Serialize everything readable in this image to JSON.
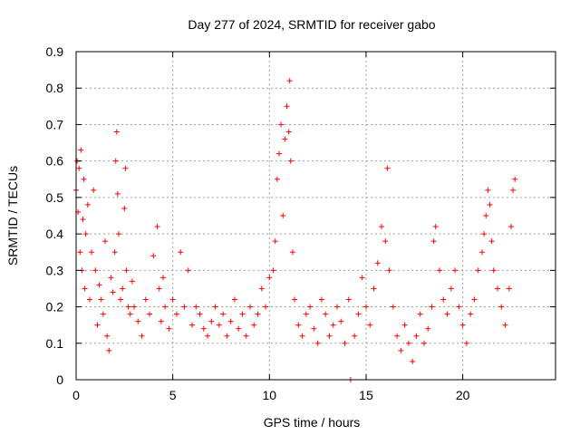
{
  "chart_data": {
    "type": "scatter",
    "title": "Day 277 of 2024, SRMTID for receiver gabo",
    "xlabel": "GPS time / hours",
    "ylabel": "SRMTID / TECUs",
    "xlim": [
      0,
      24.8
    ],
    "ylim": [
      0,
      0.9
    ],
    "x_ticks": [
      "0",
      "5",
      "10",
      "15",
      "20"
    ],
    "x_tick_values": [
      0,
      5,
      10,
      15,
      20
    ],
    "y_ticks": [
      "0",
      "0.1",
      "0.2",
      "0.3",
      "0.4",
      "0.5",
      "0.6",
      "0.7",
      "0.8",
      "0.9"
    ],
    "y_tick_values": [
      0,
      0.1,
      0.2,
      0.3,
      0.4,
      0.5,
      0.6,
      0.7,
      0.8,
      0.9
    ],
    "grid": true,
    "marker": "+",
    "series_color": "#ff0000",
    "series": [
      {
        "name": "SRMTID",
        "x": [
          0.0,
          0.05,
          0.1,
          0.15,
          0.2,
          0.25,
          0.3,
          0.35,
          0.4,
          0.45,
          0.5,
          0.6,
          0.7,
          0.8,
          0.9,
          1.0,
          1.1,
          1.2,
          1.3,
          1.4,
          1.5,
          1.6,
          1.7,
          1.8,
          1.9,
          2.0,
          2.05,
          2.1,
          2.15,
          2.2,
          2.3,
          2.4,
          2.5,
          2.55,
          2.6,
          2.7,
          2.8,
          2.9,
          3.0,
          3.2,
          3.4,
          3.6,
          3.8,
          4.0,
          4.2,
          4.3,
          4.4,
          4.5,
          4.6,
          4.8,
          5.0,
          5.2,
          5.4,
          5.6,
          5.8,
          6.0,
          6.2,
          6.4,
          6.6,
          6.8,
          7.0,
          7.2,
          7.4,
          7.6,
          7.8,
          8.0,
          8.2,
          8.4,
          8.6,
          8.8,
          9.0,
          9.2,
          9.4,
          9.6,
          9.8,
          10.0,
          10.2,
          10.3,
          10.4,
          10.5,
          10.6,
          10.7,
          10.8,
          10.9,
          11.0,
          11.05,
          11.1,
          11.2,
          11.3,
          11.5,
          11.7,
          11.9,
          12.1,
          12.3,
          12.5,
          12.7,
          12.9,
          13.1,
          13.3,
          13.5,
          13.7,
          13.9,
          14.1,
          14.2,
          14.4,
          14.6,
          14.8,
          15.0,
          15.2,
          15.4,
          15.6,
          15.8,
          16.0,
          16.1,
          16.2,
          16.4,
          16.6,
          16.8,
          17.0,
          17.2,
          17.4,
          17.6,
          17.8,
          18.0,
          18.2,
          18.4,
          18.5,
          18.6,
          18.8,
          19.0,
          19.2,
          19.4,
          19.6,
          19.8,
          20.0,
          20.2,
          20.4,
          20.6,
          20.8,
          21.0,
          21.1,
          21.2,
          21.3,
          21.4,
          21.5,
          21.6,
          21.8,
          22.0,
          22.2,
          22.4,
          22.5,
          22.6,
          22.7
        ],
        "y": [
          0.52,
          0.6,
          0.46,
          0.58,
          0.35,
          0.63,
          0.3,
          0.44,
          0.55,
          0.25,
          0.4,
          0.48,
          0.22,
          0.35,
          0.52,
          0.3,
          0.15,
          0.26,
          0.22,
          0.18,
          0.38,
          0.12,
          0.08,
          0.28,
          0.24,
          0.35,
          0.6,
          0.68,
          0.51,
          0.4,
          0.22,
          0.25,
          0.47,
          0.58,
          0.3,
          0.2,
          0.18,
          0.27,
          0.2,
          0.16,
          0.12,
          0.22,
          0.18,
          0.34,
          0.42,
          0.25,
          0.16,
          0.28,
          0.2,
          0.14,
          0.22,
          0.18,
          0.35,
          0.2,
          0.3,
          0.15,
          0.2,
          0.18,
          0.14,
          0.12,
          0.16,
          0.2,
          0.15,
          0.18,
          0.12,
          0.16,
          0.22,
          0.14,
          0.18,
          0.12,
          0.2,
          0.15,
          0.18,
          0.25,
          0.2,
          0.28,
          0.3,
          0.38,
          0.55,
          0.62,
          0.7,
          0.45,
          0.66,
          0.75,
          0.68,
          0.82,
          0.6,
          0.35,
          0.22,
          0.15,
          0.12,
          0.18,
          0.2,
          0.14,
          0.1,
          0.22,
          0.18,
          0.12,
          0.15,
          0.2,
          0.16,
          0.1,
          0.22,
          0.0,
          0.12,
          0.18,
          0.28,
          0.2,
          0.15,
          0.25,
          0.32,
          0.42,
          0.38,
          0.58,
          0.3,
          0.2,
          0.12,
          0.08,
          0.15,
          0.1,
          0.05,
          0.12,
          0.18,
          0.1,
          0.14,
          0.2,
          0.38,
          0.42,
          0.3,
          0.22,
          0.18,
          0.25,
          0.3,
          0.2,
          0.15,
          0.1,
          0.18,
          0.22,
          0.3,
          0.35,
          0.4,
          0.45,
          0.52,
          0.48,
          0.38,
          0.3,
          0.25,
          0.2,
          0.15,
          0.25,
          0.42,
          0.52,
          0.55
        ]
      }
    ]
  }
}
